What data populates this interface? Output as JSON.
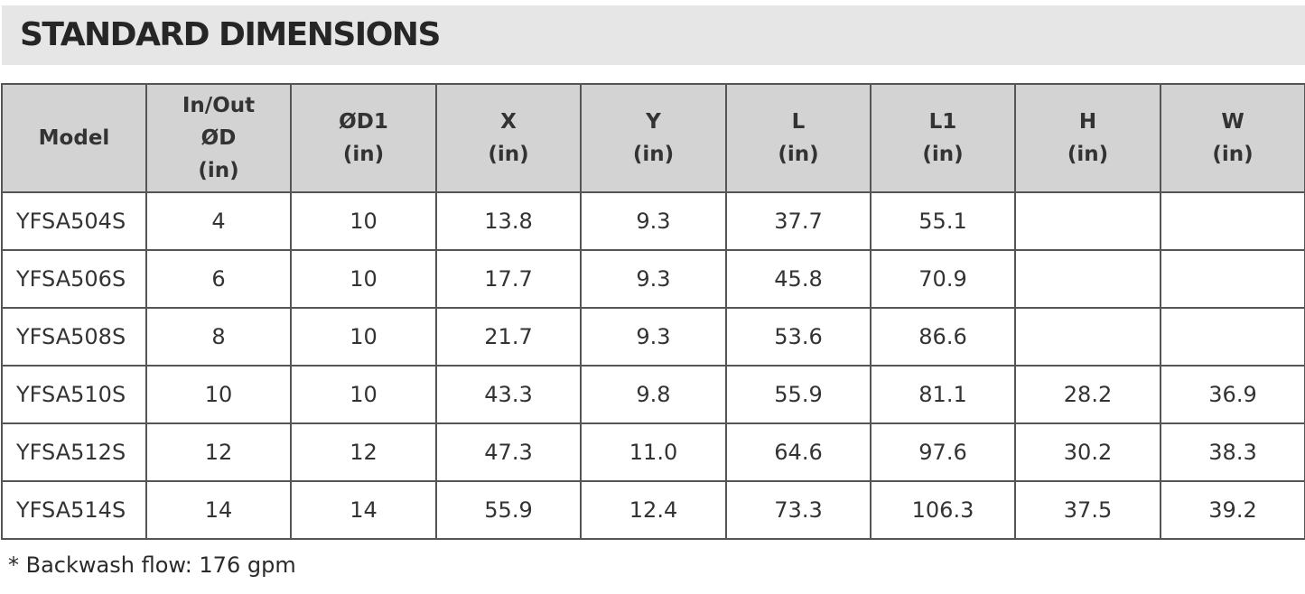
{
  "title": "STANDARD DIMENSIONS",
  "table": {
    "headers": [
      [
        "Model"
      ],
      [
        "In/Out",
        "ØD",
        "(in)"
      ],
      [
        "ØD1",
        "(in)"
      ],
      [
        "X",
        "(in)"
      ],
      [
        "Y",
        "(in)"
      ],
      [
        "L",
        "(in)"
      ],
      [
        "L1",
        "(in)"
      ],
      [
        "H",
        "(in)"
      ],
      [
        "W",
        "(in)"
      ]
    ],
    "rows": [
      [
        "YFSA504S",
        "4",
        "10",
        "13.8",
        "9.3",
        "37.7",
        "55.1",
        "",
        ""
      ],
      [
        "YFSA506S",
        "6",
        "10",
        "17.7",
        "9.3",
        "45.8",
        "70.9",
        "",
        ""
      ],
      [
        "YFSA508S",
        "8",
        "10",
        "21.7",
        "9.3",
        "53.6",
        "86.6",
        "",
        ""
      ],
      [
        "YFSA510S",
        "10",
        "10",
        "43.3",
        "9.8",
        "55.9",
        "81.1",
        "28.2",
        "36.9"
      ],
      [
        "YFSA512S",
        "12",
        "12",
        "47.3",
        "11.0",
        "64.6",
        "97.6",
        "30.2",
        "38.3"
      ],
      [
        "YFSA514S",
        "14",
        "14",
        "55.9",
        "12.4",
        "73.3",
        "106.3",
        "37.5",
        "39.2"
      ]
    ]
  },
  "footnote": "* Backwash flow: 176 gpm",
  "colors": {
    "title_bar": "#e6e6e6",
    "header_fill": "#d3d3d3",
    "border": "#555555",
    "text": "#333333"
  }
}
